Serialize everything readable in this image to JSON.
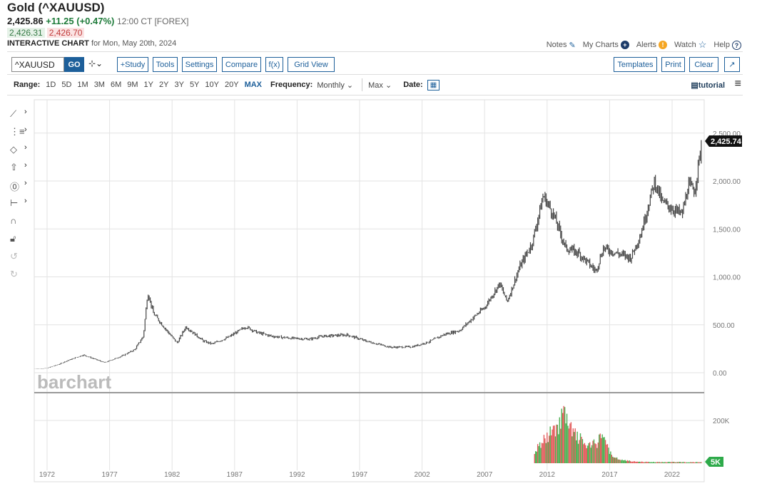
{
  "header": {
    "title": "Gold (^XAUUSD)",
    "last": "2,425.86",
    "change": "+11.25 (+0.47%)",
    "time": "12:00 CT [FOREX]",
    "bid": "2,426.31",
    "ask": "2,426.70",
    "chart_label": "INTERACTIVE CHART",
    "chart_date": "for Mon, May 20th, 2024"
  },
  "top_links": [
    {
      "label": "Notes",
      "icon": "edit-icon"
    },
    {
      "label": "My Charts",
      "icon": "plus-circle-icon"
    },
    {
      "label": "Alerts",
      "icon": "alert-icon"
    },
    {
      "label": "Watch",
      "icon": "star-icon"
    },
    {
      "label": "Help",
      "icon": "help-icon"
    }
  ],
  "toolbar": {
    "symbol": "^XAUUSD",
    "go": "GO",
    "bar_type": "⊹⌄",
    "study": "+Study",
    "tools": "Tools",
    "settings": "Settings",
    "compare": "Compare",
    "fx": "f(x)",
    "grid_view": "Grid View",
    "templates": "Templates",
    "print": "Print",
    "clear": "Clear",
    "expand": "↗"
  },
  "range": {
    "label": "Range:",
    "options": [
      "1D",
      "5D",
      "1M",
      "3M",
      "6M",
      "9M",
      "1Y",
      "2Y",
      "3Y",
      "5Y",
      "10Y",
      "20Y",
      "MAX"
    ],
    "active": "MAX",
    "frequency_label": "Frequency:",
    "frequency": "Monthly",
    "aggregation": "Max",
    "date_label": "Date:",
    "tutorial": "tutorial"
  },
  "colors": {
    "accent": "#1d5f9a",
    "up": "#4caf50",
    "down": "#e35b5b",
    "price": "#333333"
  },
  "chart_data": {
    "type": "line",
    "watermark": "barchart",
    "last_price_label": "2,425.74",
    "last_volume_label": "5K",
    "x_ticks": [
      "1972",
      "1977",
      "1982",
      "1987",
      "1992",
      "1997",
      "2002",
      "2007",
      "2012",
      "2017",
      "2022"
    ],
    "y_ticks": [
      "0.00",
      "500.00",
      "1,000.00",
      "1,500.00",
      "2,000.00",
      "2,500.00"
    ],
    "y_range": [
      -100,
      2600
    ],
    "volume_ticks": [
      "200K"
    ],
    "price_series": {
      "x": [
        1971.0,
        1972.0,
        1973.0,
        1973.5,
        1974.9,
        1976.6,
        1978.0,
        1979.0,
        1979.7,
        1980.05,
        1980.5,
        1981.5,
        1982.4,
        1983.1,
        1984.5,
        1985.2,
        1986.5,
        1987.9,
        1988.8,
        1990.0,
        1991.5,
        1993.0,
        1994.0,
        1996.0,
        1997.5,
        1999.5,
        2001.2,
        2002.5,
        2003.8,
        2005.0,
        2006.3,
        2007.0,
        2008.2,
        2008.8,
        2009.8,
        2010.8,
        2011.7,
        2012.5,
        2013.5,
        2014.5,
        2015.9,
        2016.5,
        2017.5,
        2018.7,
        2019.5,
        2020.6,
        2021.2,
        2022.8,
        2023.3,
        2023.8,
        2024.4
      ],
      "y": [
        38,
        48,
        90,
        120,
        185,
        105,
        175,
        240,
        380,
        840,
        620,
        450,
        310,
        480,
        330,
        300,
        370,
        480,
        420,
        380,
        360,
        350,
        380,
        395,
        330,
        265,
        270,
        320,
        400,
        440,
        600,
        680,
        930,
        740,
        1100,
        1350,
        1850,
        1650,
        1300,
        1250,
        1060,
        1300,
        1250,
        1200,
        1450,
        2000,
        1780,
        1650,
        1950,
        1900,
        2425
      ]
    },
    "volume_series": {
      "x": [
        2011.0,
        2011.5,
        2012.0,
        2012.5,
        2013.0,
        2013.3,
        2013.7,
        2014.2,
        2014.8,
        2015.3,
        2016.0,
        2016.4,
        2016.8,
        2017.2,
        2018.0,
        2019.0,
        2020.0,
        2021.0,
        2022.0,
        2023.0,
        2024.3
      ],
      "y": [
        60,
        95,
        130,
        160,
        200,
        250,
        180,
        140,
        110,
        80,
        100,
        150,
        90,
        30,
        15,
        8,
        6,
        5,
        6,
        5,
        5
      ]
    }
  }
}
